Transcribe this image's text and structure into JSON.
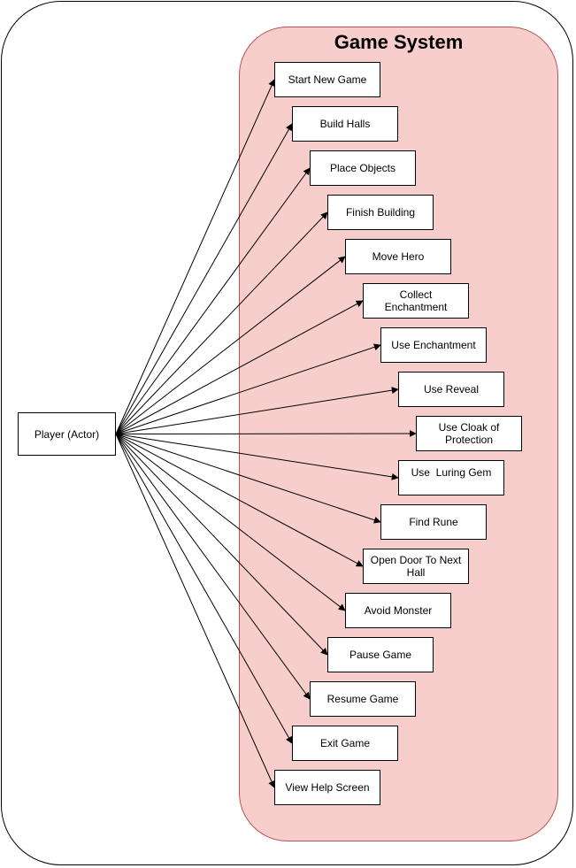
{
  "system": {
    "title": "Game System"
  },
  "actor": {
    "label": "Player (Actor)"
  },
  "use_cases": [
    {
      "label": "Start New Game"
    },
    {
      "label": "Build Halls"
    },
    {
      "label": "Place Objects"
    },
    {
      "label": "Finish Building"
    },
    {
      "label": "Move Hero"
    },
    {
      "label": "Collect Enchantment"
    },
    {
      "label": "Use Enchantment"
    },
    {
      "label": "Use Reveal"
    },
    {
      "label": "Use Cloak of Protection"
    },
    {
      "label": "Use  Luring Gem"
    },
    {
      "label": "Find Rune"
    },
    {
      "label": "Open Door To Next Hall"
    },
    {
      "label": "Avoid Monster"
    },
    {
      "label": "Pause Game"
    },
    {
      "label": "Resume Game"
    },
    {
      "label": "Exit Game"
    },
    {
      "label": "View Help Screen"
    }
  ],
  "colors": {
    "boundary_fill": "#f8cecc",
    "boundary_stroke": "#b85450",
    "line": "#000000"
  }
}
